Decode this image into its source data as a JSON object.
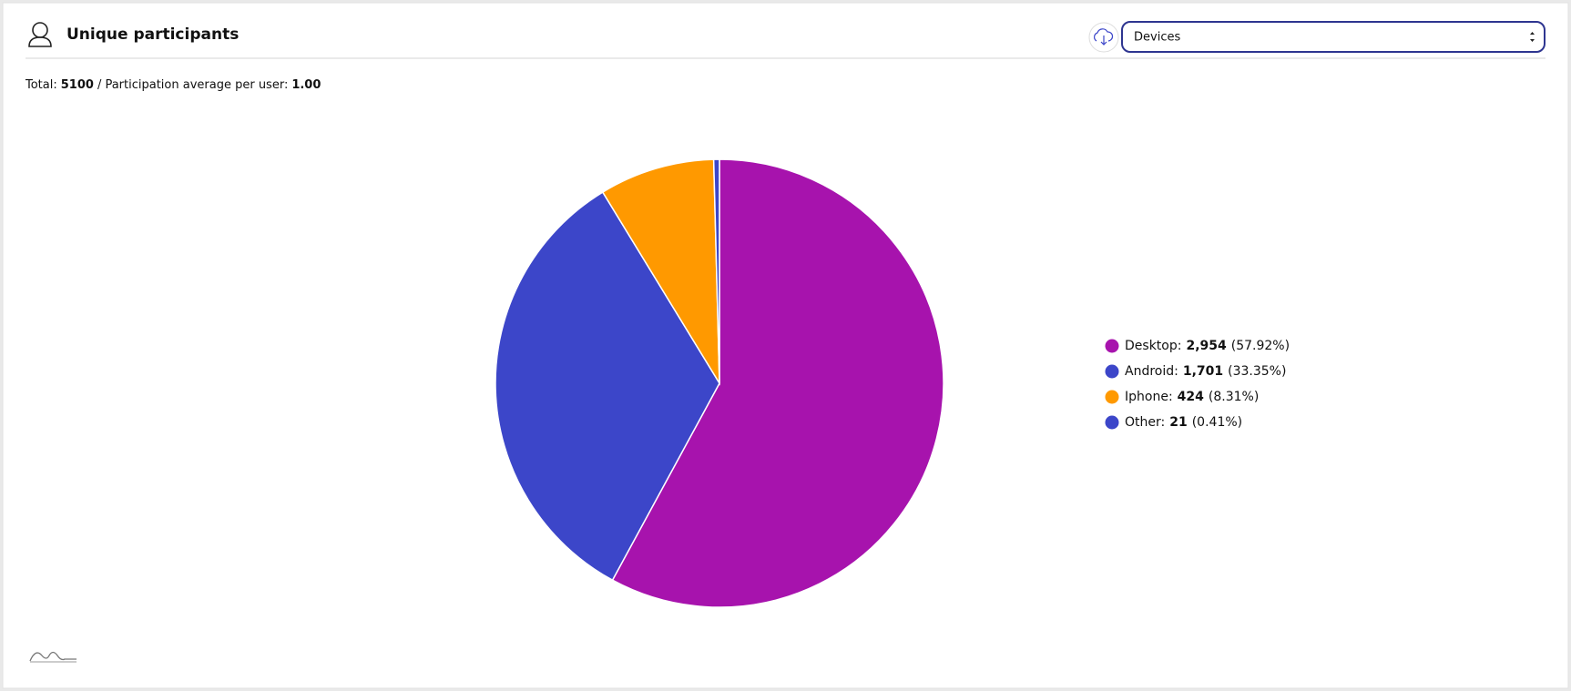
{
  "header": {
    "title": "Unique participants",
    "select_value": "Devices"
  },
  "summary": {
    "total_label": "Total:",
    "total": 5100,
    "average_label": "/ Participation average per user:",
    "average": "1.00"
  },
  "chart_data": {
    "type": "pie",
    "categories": [
      "Desktop:",
      "Android:",
      "Iphone:",
      "Other:"
    ],
    "values": [
      2954,
      1701,
      424,
      21
    ],
    "value_labels": [
      "2,954",
      "1,701",
      "424",
      "21"
    ],
    "percent_labels": [
      "(57.92%)",
      "(33.35%)",
      "(8.31%)",
      "(0.41%)"
    ],
    "colors": [
      "#a713ad",
      "#3c46c9",
      "#ff9900",
      "#3c46c9"
    ]
  }
}
